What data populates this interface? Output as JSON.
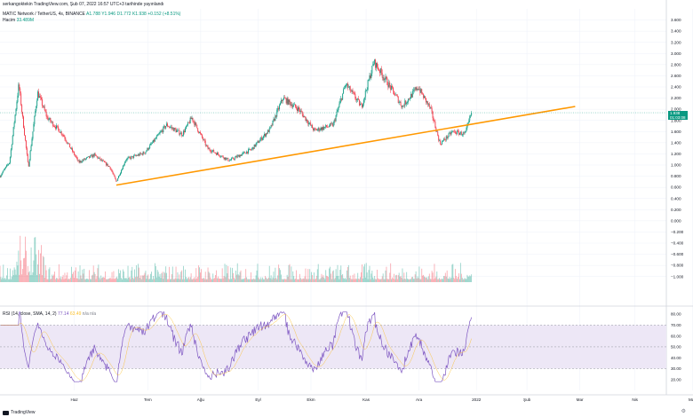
{
  "header": {
    "publish_text": "serkangoktekin TradingView.com, Şub 07, 2022 16:57 UTC+3 tarihinde yayınlandı"
  },
  "legend": {
    "title": "MATIC Network / TetherUS, 4s, BINANCE",
    "open": "A1.788",
    "high": "Y1.946",
    "low": "D1.772",
    "close": "K1.938",
    "change": "+0.152 (+8.51%)",
    "volume_label": "Hacim",
    "volume_value": "33.489M"
  },
  "price_tag": {
    "price": "1.938",
    "countdown": "01:03:08"
  },
  "rsi_legend": {
    "text": "RSI (14, close, SMA, 14, 2)",
    "value1": "77.14",
    "value2": "63.49",
    "rest": "n/a n/a"
  },
  "footer": {
    "brand": "TradingView"
  },
  "colors": {
    "up": "#089981",
    "down": "#f23645",
    "trendline": "#ff9800",
    "rsi_line": "#7e57c2",
    "rsi_band": "#ede7f6",
    "grid": "#f0f3fa"
  },
  "chart_data": [
    {
      "type": "candlestick",
      "symbol": "MATIC Network / TetherUS",
      "ylim": [
        -1.1,
        3.8
      ],
      "y_ticks": [
        "3.600",
        "3.400",
        "3.200",
        "3.000",
        "2.800",
        "2.600",
        "2.400",
        "2.200",
        "2.000",
        "1.800",
        "1.600",
        "1.400",
        "1.200",
        "1.000",
        "0.800",
        "0.600",
        "0.400",
        "0.200",
        "0.000",
        "−0.200",
        "−0.400",
        "−0.600",
        "−0.800",
        "−1.000"
      ],
      "x_ticks": [
        "Haz",
        "Tem",
        "Ağu",
        "Eyl",
        "Ekm",
        "Kas",
        "Ara",
        "2022",
        "Şub",
        "Mar",
        "Nis",
        "May"
      ],
      "close_path": [
        {
          "t": 0.0,
          "p": 0.8
        },
        {
          "t": 0.3,
          "p": 1.05
        },
        {
          "t": 0.6,
          "p": 2.45
        },
        {
          "t": 0.9,
          "p": 0.95
        },
        {
          "t": 1.2,
          "p": 2.3
        },
        {
          "t": 1.5,
          "p": 1.85
        },
        {
          "t": 2.0,
          "p": 1.55
        },
        {
          "t": 2.5,
          "p": 1.05
        },
        {
          "t": 3.0,
          "p": 1.18
        },
        {
          "t": 3.5,
          "p": 0.96
        },
        {
          "t": 3.7,
          "p": 0.7
        },
        {
          "t": 4.0,
          "p": 1.1
        },
        {
          "t": 4.6,
          "p": 1.22
        },
        {
          "t": 5.3,
          "p": 1.72
        },
        {
          "t": 5.8,
          "p": 1.55
        },
        {
          "t": 6.1,
          "p": 1.85
        },
        {
          "t": 6.6,
          "p": 1.3
        },
        {
          "t": 7.3,
          "p": 1.08
        },
        {
          "t": 8.0,
          "p": 1.28
        },
        {
          "t": 8.6,
          "p": 1.65
        },
        {
          "t": 9.0,
          "p": 2.2
        },
        {
          "t": 9.5,
          "p": 2.0
        },
        {
          "t": 10.0,
          "p": 1.62
        },
        {
          "t": 10.6,
          "p": 1.72
        },
        {
          "t": 11.0,
          "p": 2.45
        },
        {
          "t": 11.5,
          "p": 2.05
        },
        {
          "t": 11.9,
          "p": 2.85
        },
        {
          "t": 12.3,
          "p": 2.5
        },
        {
          "t": 12.8,
          "p": 2.05
        },
        {
          "t": 13.3,
          "p": 2.4
        },
        {
          "t": 13.7,
          "p": 2.0
        },
        {
          "t": 14.0,
          "p": 1.38
        },
        {
          "t": 14.4,
          "p": 1.6
        },
        {
          "t": 14.8,
          "p": 1.55
        },
        {
          "t": 15.0,
          "p": 1.94
        }
      ],
      "trendline": {
        "from": {
          "t": 3.7,
          "p": 0.64
        },
        "to": {
          "t": 18.3,
          "p": 2.05
        }
      },
      "last_price": 1.938
    },
    {
      "type": "line",
      "name": "RSI (14, close, SMA, 14, 2)",
      "ylim": [
        10,
        85
      ],
      "y_ticks": [
        "80.00",
        "70.00",
        "60.00",
        "50.00",
        "40.00",
        "30.00",
        "20.00"
      ],
      "upper_band": 70,
      "lower_band": 30,
      "middle": 50,
      "last": 77.14
    }
  ]
}
